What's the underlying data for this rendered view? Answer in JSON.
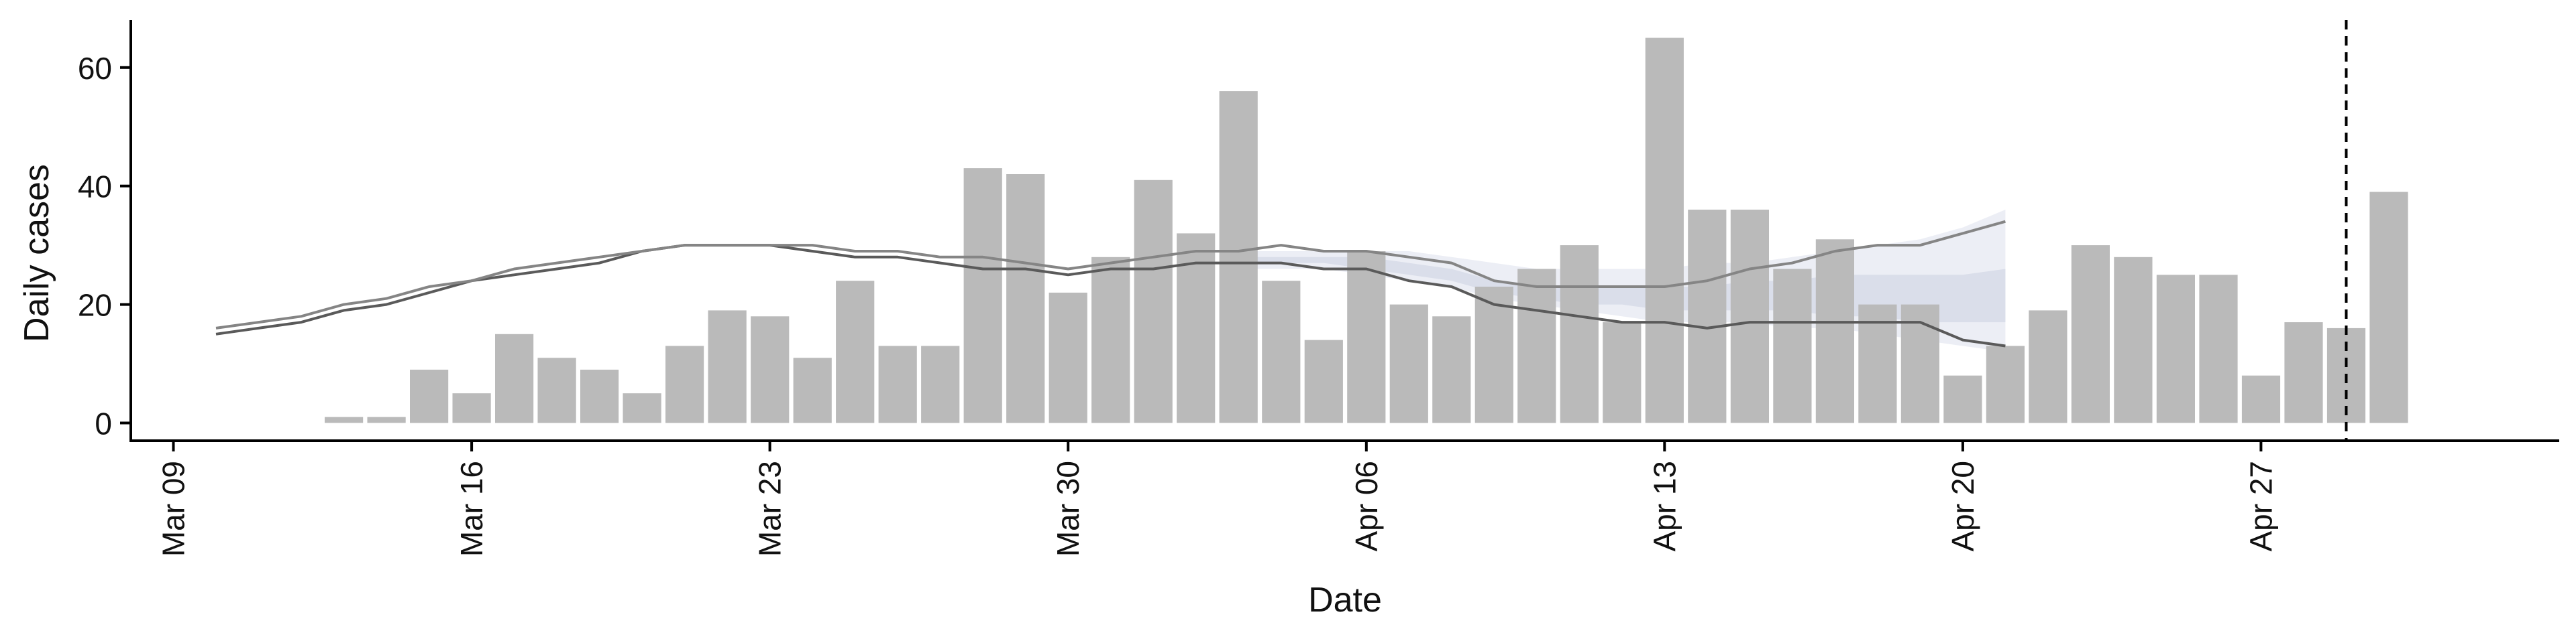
{
  "chart_data": {
    "type": "bar",
    "xlabel": "Date",
    "ylabel": "Daily cases",
    "xlim": [
      "2020-03-08",
      "2020-05-04"
    ],
    "ylim": [
      -3,
      68
    ],
    "grid": false,
    "legend": "none",
    "x_ticks": [
      {
        "date": "2020-03-09",
        "label": "Mar 09"
      },
      {
        "date": "2020-03-16",
        "label": "Mar 16"
      },
      {
        "date": "2020-03-23",
        "label": "Mar 23"
      },
      {
        "date": "2020-03-30",
        "label": "Mar 30"
      },
      {
        "date": "2020-04-06",
        "label": "Apr 06"
      },
      {
        "date": "2020-04-13",
        "label": "Apr 13"
      },
      {
        "date": "2020-04-20",
        "label": "Apr 20"
      },
      {
        "date": "2020-04-27",
        "label": "Apr 27"
      }
    ],
    "y_ticks": [
      0,
      20,
      40,
      60
    ],
    "bars": {
      "color": "#bababa",
      "dates": [
        "2020-03-13",
        "2020-03-14",
        "2020-03-15",
        "2020-03-16",
        "2020-03-17",
        "2020-03-18",
        "2020-03-19",
        "2020-03-20",
        "2020-03-21",
        "2020-03-22",
        "2020-03-23",
        "2020-03-24",
        "2020-03-25",
        "2020-03-26",
        "2020-03-27",
        "2020-03-28",
        "2020-03-29",
        "2020-03-30",
        "2020-03-31",
        "2020-04-01",
        "2020-04-02",
        "2020-04-03",
        "2020-04-04",
        "2020-04-05",
        "2020-04-06",
        "2020-04-07",
        "2020-04-08",
        "2020-04-09",
        "2020-04-10",
        "2020-04-11",
        "2020-04-12",
        "2020-04-13",
        "2020-04-14",
        "2020-04-15",
        "2020-04-16",
        "2020-04-17",
        "2020-04-18",
        "2020-04-19",
        "2020-04-20",
        "2020-04-21",
        "2020-04-22",
        "2020-04-23",
        "2020-04-24",
        "2020-04-25",
        "2020-04-26",
        "2020-04-27",
        "2020-04-28",
        "2020-04-29",
        "2020-04-30"
      ],
      "values": [
        1,
        1,
        9,
        5,
        15,
        11,
        9,
        5,
        13,
        19,
        18,
        11,
        24,
        13,
        13,
        43,
        42,
        22,
        28,
        41,
        32,
        56,
        24,
        14,
        29,
        20,
        18,
        23,
        26,
        30,
        17,
        65,
        36,
        36,
        26,
        31,
        20,
        20,
        8,
        13,
        19,
        30,
        28,
        25,
        25,
        8,
        17,
        16,
        39
      ]
    },
    "lines": [
      {
        "color": "#5a5a5a",
        "dates": [
          "2020-03-10",
          "2020-03-11",
          "2020-03-12",
          "2020-03-13",
          "2020-03-14",
          "2020-03-15",
          "2020-03-16",
          "2020-03-17",
          "2020-03-18",
          "2020-03-19",
          "2020-03-20",
          "2020-03-21",
          "2020-03-22",
          "2020-03-23",
          "2020-03-24",
          "2020-03-25",
          "2020-03-26",
          "2020-03-27",
          "2020-03-28",
          "2020-03-29",
          "2020-03-30",
          "2020-03-31",
          "2020-04-01",
          "2020-04-02",
          "2020-04-03",
          "2020-04-04",
          "2020-04-05",
          "2020-04-06",
          "2020-04-07",
          "2020-04-08",
          "2020-04-09",
          "2020-04-10",
          "2020-04-11",
          "2020-04-12",
          "2020-04-13",
          "2020-04-14",
          "2020-04-15",
          "2020-04-16",
          "2020-04-17",
          "2020-04-18",
          "2020-04-19",
          "2020-04-20",
          "2020-04-21"
        ],
        "values": [
          15,
          16,
          17,
          19,
          20,
          22,
          24,
          25,
          26,
          27,
          29,
          30,
          30,
          30,
          29,
          28,
          28,
          27,
          26,
          26,
          25,
          26,
          26,
          27,
          27,
          27,
          26,
          26,
          24,
          23,
          20,
          19,
          18,
          17,
          17,
          16,
          17,
          17,
          17,
          17,
          17,
          14,
          13
        ]
      },
      {
        "color": "#858585",
        "dates": [
          "2020-03-10",
          "2020-03-11",
          "2020-03-12",
          "2020-03-13",
          "2020-03-14",
          "2020-03-15",
          "2020-03-16",
          "2020-03-17",
          "2020-03-18",
          "2020-03-19",
          "2020-03-20",
          "2020-03-21",
          "2020-03-22",
          "2020-03-23",
          "2020-03-24",
          "2020-03-25",
          "2020-03-26",
          "2020-03-27",
          "2020-03-28",
          "2020-03-29",
          "2020-03-30",
          "2020-03-31",
          "2020-04-01",
          "2020-04-02",
          "2020-04-03",
          "2020-04-04",
          "2020-04-05",
          "2020-04-06",
          "2020-04-07",
          "2020-04-08",
          "2020-04-09",
          "2020-04-10",
          "2020-04-11",
          "2020-04-12",
          "2020-04-13",
          "2020-04-14",
          "2020-04-15",
          "2020-04-16",
          "2020-04-17",
          "2020-04-18",
          "2020-04-19",
          "2020-04-20",
          "2020-04-21"
        ],
        "values": [
          16,
          17,
          18,
          20,
          21,
          23,
          24,
          26,
          27,
          28,
          29,
          30,
          30,
          30,
          30,
          29,
          29,
          28,
          28,
          27,
          26,
          27,
          28,
          29,
          29,
          30,
          29,
          29,
          28,
          27,
          24,
          23,
          23,
          23,
          23,
          24,
          26,
          27,
          29,
          30,
          30,
          32,
          34
        ]
      }
    ],
    "bands": [
      {
        "color": "#9aa4c2",
        "opacity": 0.45,
        "dates": [
          "2020-04-03",
          "2020-04-04",
          "2020-04-05",
          "2020-04-06",
          "2020-04-07",
          "2020-04-08",
          "2020-04-09",
          "2020-04-10",
          "2020-04-11",
          "2020-04-12",
          "2020-04-13",
          "2020-04-14",
          "2020-04-15",
          "2020-04-16",
          "2020-04-17",
          "2020-04-18",
          "2020-04-19",
          "2020-04-20",
          "2020-04-21"
        ],
        "upper": [
          28,
          28,
          28,
          28,
          27,
          26,
          24,
          23,
          23,
          23,
          23,
          23,
          24,
          24,
          25,
          25,
          25,
          25,
          26
        ],
        "lower": [
          27,
          27,
          27,
          26,
          25,
          24,
          22,
          21,
          20,
          20,
          19,
          19,
          19,
          19,
          18,
          18,
          17,
          17,
          17
        ]
      },
      {
        "color": "#dfe3ee",
        "opacity": 0.6,
        "dates": [
          "2020-04-03",
          "2020-04-04",
          "2020-04-05",
          "2020-04-06",
          "2020-04-07",
          "2020-04-08",
          "2020-04-09",
          "2020-04-10",
          "2020-04-11",
          "2020-04-12",
          "2020-04-13",
          "2020-04-14",
          "2020-04-15",
          "2020-04-16",
          "2020-04-17",
          "2020-04-18",
          "2020-04-19",
          "2020-04-20",
          "2020-04-21"
        ],
        "upper": [
          29,
          29,
          29,
          29,
          29,
          28,
          27,
          26,
          26,
          26,
          26,
          27,
          27,
          28,
          29,
          30,
          31,
          33,
          36
        ],
        "lower": [
          26,
          26,
          26,
          25,
          24,
          23,
          21,
          20,
          19,
          18,
          17,
          17,
          17,
          16,
          16,
          15,
          14,
          13,
          12
        ]
      }
    ],
    "reference_line": {
      "date": "2020-04-29",
      "style": "dashed",
      "color": "#000000"
    }
  }
}
